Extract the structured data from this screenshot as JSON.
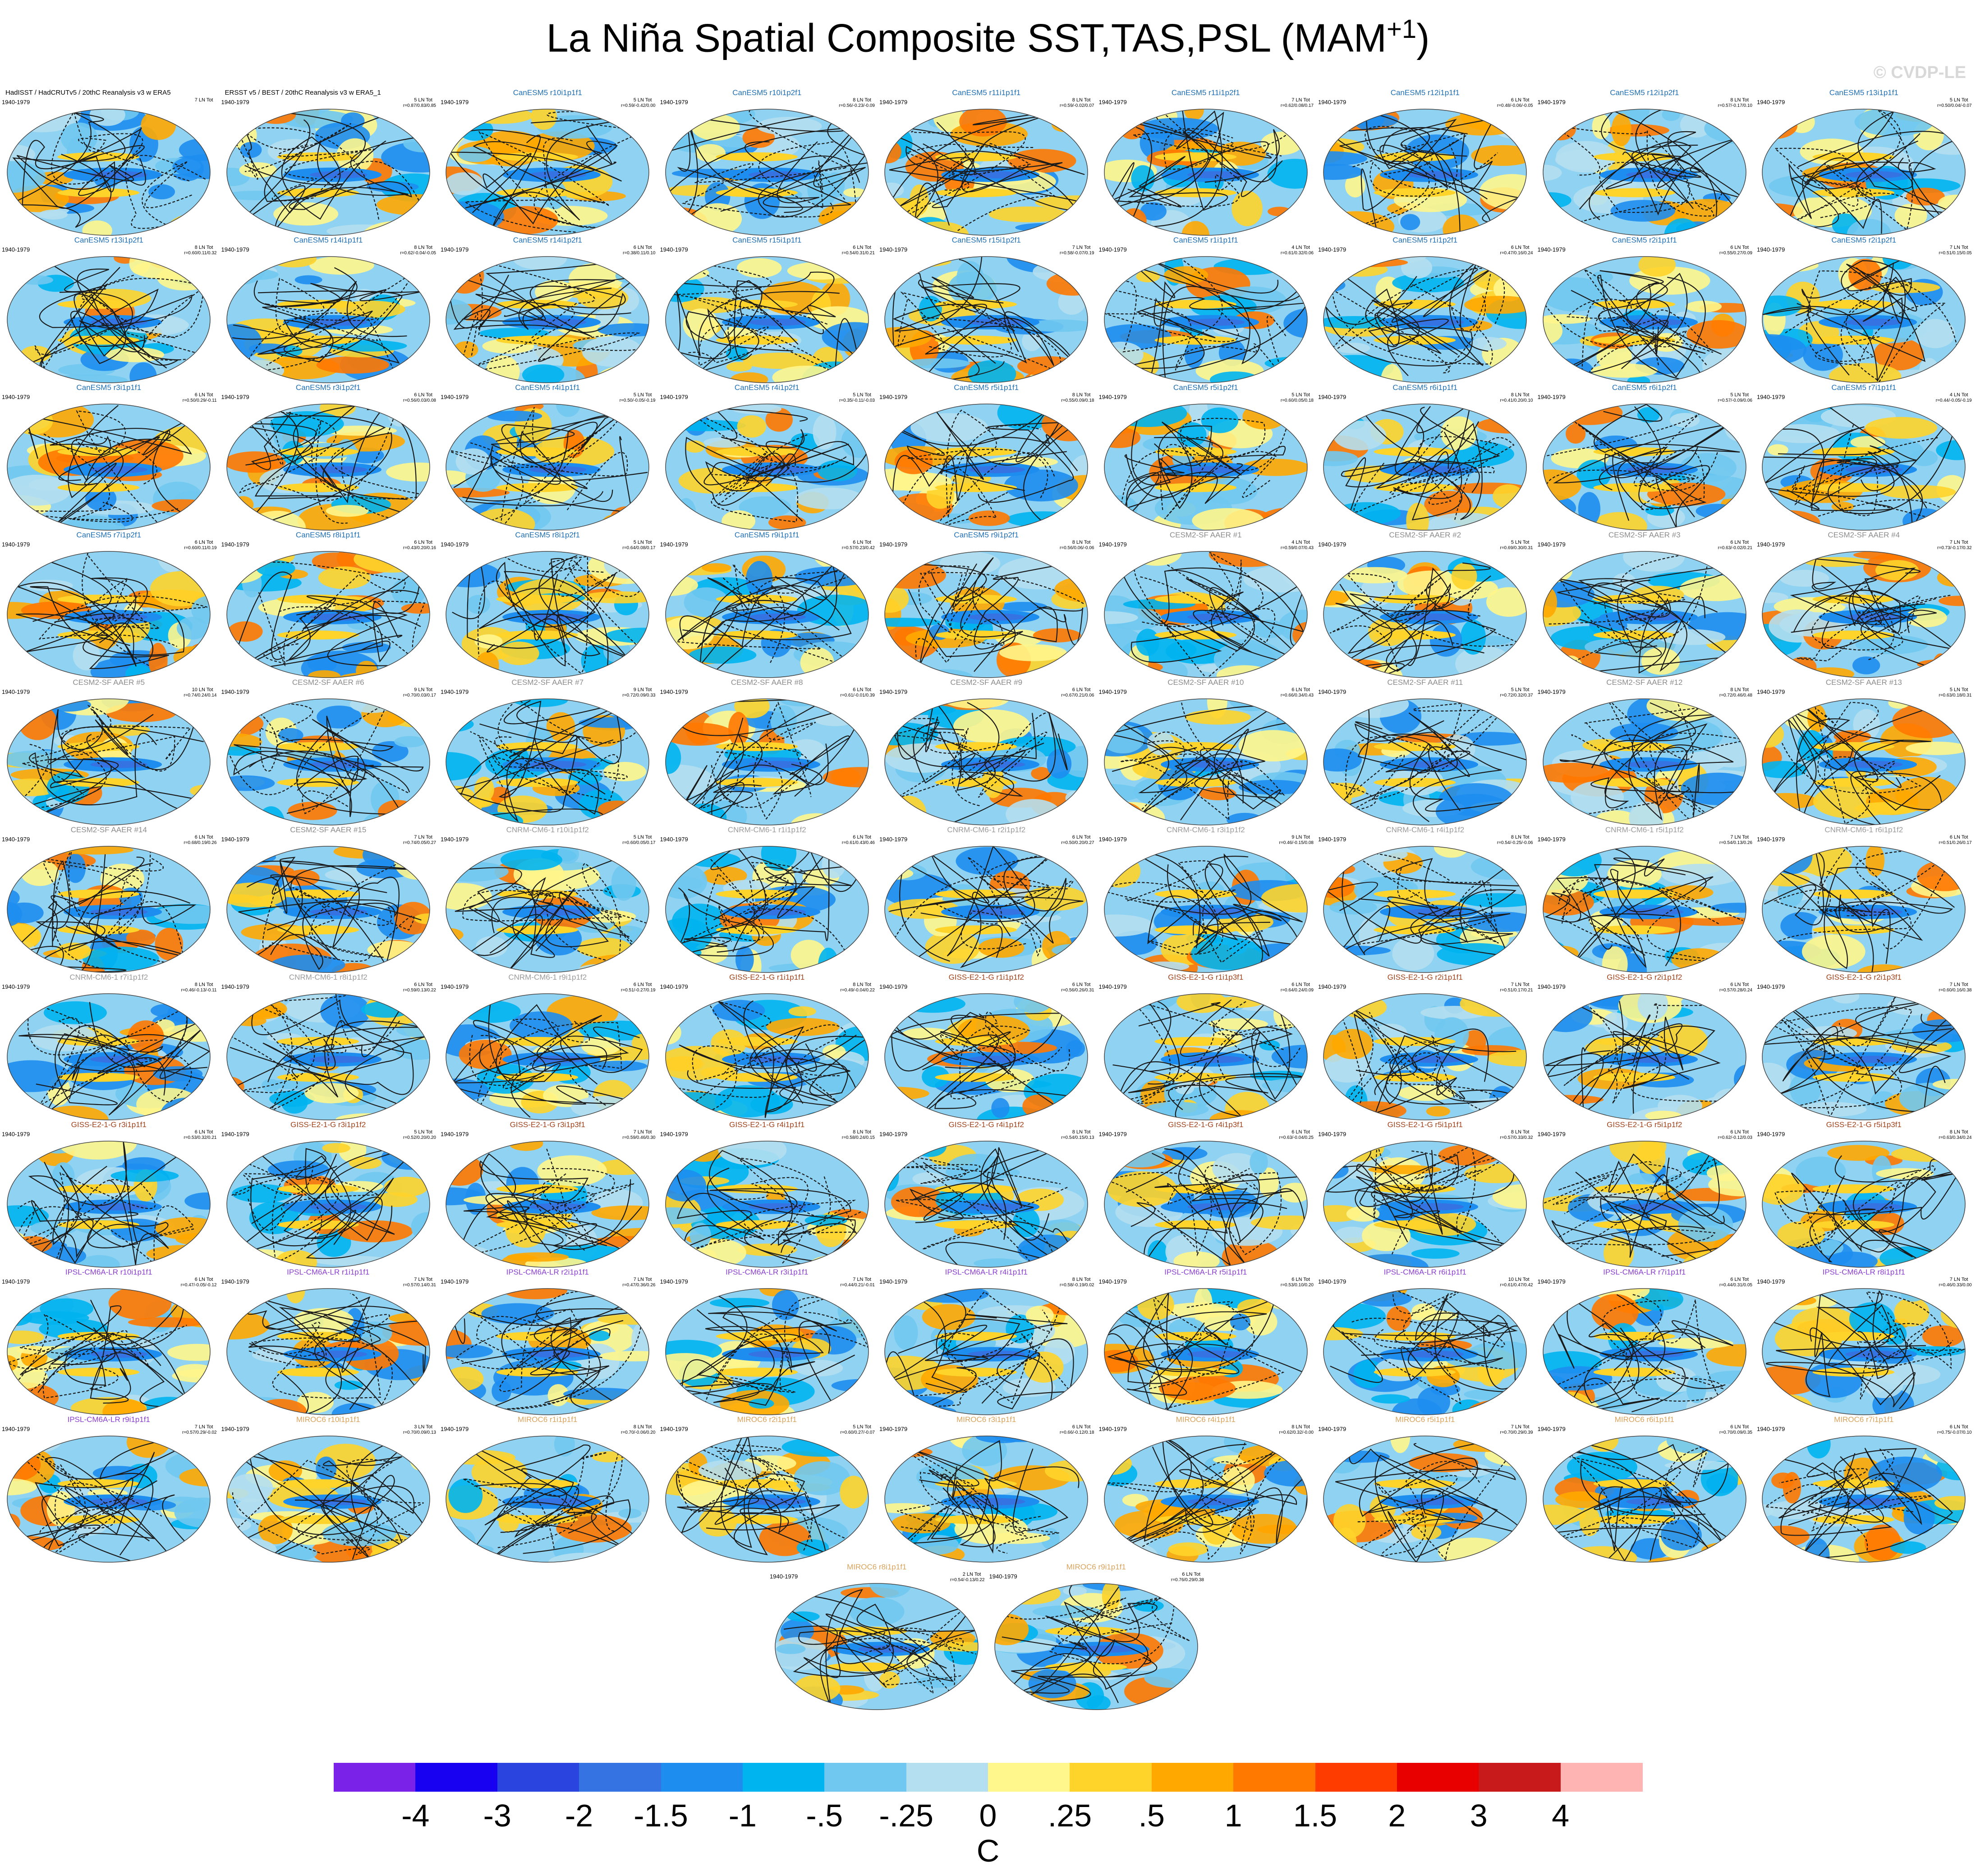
{
  "title": {
    "main": "La Niña Spatial Composite SST,TAS,PSL (MAM",
    "sup": "+1",
    "close": ")"
  },
  "credit": "© CVDP-LE",
  "period": "1940-1979",
  "panels": [
    {
      "name": "HadISST / HadCRUTv5 / 20thC Reanalysis v3 w ERA5",
      "count": "7 LN Tot",
      "stats": "",
      "color": "#000000",
      "left": true
    },
    {
      "name": "ERSST v5 / BEST / 20thC Reanalysis v3 w ERA5_1",
      "count": "5 LN Tot",
      "stats": "r=0.87/0.83/0.85",
      "color": "#000000",
      "left": true
    },
    {
      "name": "CanESM5 r10i1p1f1",
      "count": "5 LN Tot",
      "stats": "r=0.59/-0.42/0.00",
      "color": "#1f6fb4"
    },
    {
      "name": "CanESM5 r10i1p2f1",
      "count": "8 LN Tot",
      "stats": "r=0.56/-0.23/-0.09",
      "color": "#1f6fb4"
    },
    {
      "name": "CanESM5 r11i1p1f1",
      "count": "8 LN Tot",
      "stats": "r=0.59/-0.02/0.07",
      "color": "#1f6fb4"
    },
    {
      "name": "CanESM5 r11i1p2f1",
      "count": "7 LN Tot",
      "stats": "r=0.62/0.08/0.17",
      "color": "#1f6fb4"
    },
    {
      "name": "CanESM5 r12i1p1f1",
      "count": "6 LN Tot",
      "stats": "r=0.48/-0.06/-0.05",
      "color": "#1f6fb4"
    },
    {
      "name": "CanESM5 r12i1p2f1",
      "count": "8 LN Tot",
      "stats": "r=0.57/-0.17/0.10",
      "color": "#1f6fb4"
    },
    {
      "name": "CanESM5 r13i1p1f1",
      "count": "5 LN Tot",
      "stats": "r=0.50/0.04/-0.07",
      "color": "#1f6fb4"
    },
    {
      "name": "CanESM5 r13i1p2f1",
      "count": "8 LN Tot",
      "stats": "r=0.60/0.11/0.32",
      "color": "#1f6fb4"
    },
    {
      "name": "CanESM5 r14i1p1f1",
      "count": "8 LN Tot",
      "stats": "r=0.62/-0.04/-0.05",
      "color": "#1f6fb4"
    },
    {
      "name": "CanESM5 r14i1p2f1",
      "count": "6 LN Tot",
      "stats": "r=0.38/0.11/0.10",
      "color": "#1f6fb4"
    },
    {
      "name": "CanESM5 r15i1p1f1",
      "count": "6 LN Tot",
      "stats": "r=0.54/0.31/0.21",
      "color": "#1f6fb4"
    },
    {
      "name": "CanESM5 r15i1p2f1",
      "count": "7 LN Tot",
      "stats": "r=0.58/-0.07/0.19",
      "color": "#1f6fb4"
    },
    {
      "name": "CanESM5 r1i1p1f1",
      "count": "4 LN Tot",
      "stats": "r=0.61/0.32/0.06",
      "color": "#1f6fb4"
    },
    {
      "name": "CanESM5 r1i1p2f1",
      "count": "6 LN Tot",
      "stats": "r=0.47/0.16/0.24",
      "color": "#1f6fb4"
    },
    {
      "name": "CanESM5 r2i1p1f1",
      "count": "6 LN Tot",
      "stats": "r=0.55/0.27/0.09",
      "color": "#1f6fb4"
    },
    {
      "name": "CanESM5 r2i1p2f1",
      "count": "7 LN Tot",
      "stats": "r=0.51/0.15/0.05",
      "color": "#1f6fb4"
    },
    {
      "name": "CanESM5 r3i1p1f1",
      "count": "6 LN Tot",
      "stats": "r=0.50/0.29/-0.11",
      "color": "#1f6fb4"
    },
    {
      "name": "CanESM5 r3i1p2f1",
      "count": "6 LN Tot",
      "stats": "r=0.56/0.03/0.08",
      "color": "#1f6fb4"
    },
    {
      "name": "CanESM5 r4i1p1f1",
      "count": "5 LN Tot",
      "stats": "r=0.50/-0.05/-0.19",
      "color": "#1f6fb4"
    },
    {
      "name": "CanESM5 r4i1p2f1",
      "count": "5 LN Tot",
      "stats": "r=0.35/-0.11/-0.03",
      "color": "#1f6fb4"
    },
    {
      "name": "CanESM5 r5i1p1f1",
      "count": "8 LN Tot",
      "stats": "r=0.55/0.09/0.18",
      "color": "#1f6fb4"
    },
    {
      "name": "CanESM5 r5i1p2f1",
      "count": "5 LN Tot",
      "stats": "r=0.60/0.05/0.18",
      "color": "#1f6fb4"
    },
    {
      "name": "CanESM5 r6i1p1f1",
      "count": "8 LN Tot",
      "stats": "r=0.41/0.20/0.10",
      "color": "#1f6fb4"
    },
    {
      "name": "CanESM5 r6i1p2f1",
      "count": "5 LN Tot",
      "stats": "r=0.57/-0.09/0.06",
      "color": "#1f6fb4"
    },
    {
      "name": "CanESM5 r7i1p1f1",
      "count": "4 LN Tot",
      "stats": "r=0.44/-0.05/-0.19",
      "color": "#1f6fb4"
    },
    {
      "name": "CanESM5 r7i1p2f1",
      "count": "6 LN Tot",
      "stats": "r=0.60/0.11/0.19",
      "color": "#1f6fb4"
    },
    {
      "name": "CanESM5 r8i1p1f1",
      "count": "6 LN Tot",
      "stats": "r=0.43/0.20/0.16",
      "color": "#1f6fb4"
    },
    {
      "name": "CanESM5 r8i1p2f1",
      "count": "5 LN Tot",
      "stats": "r=0.64/0.08/0.17",
      "color": "#1f6fb4"
    },
    {
      "name": "CanESM5 r9i1p1f1",
      "count": "6 LN Tot",
      "stats": "r=0.57/0.23/0.42",
      "color": "#1f6fb4"
    },
    {
      "name": "CanESM5 r9i1p2f1",
      "count": "8 LN Tot",
      "stats": "r=0.56/0.06/-0.06",
      "color": "#1f6fb4"
    },
    {
      "name": "CESM2-SF AAER #1",
      "count": "4 LN Tot",
      "stats": "r=0.59/0.07/0.43",
      "color": "#8c8c8c"
    },
    {
      "name": "CESM2-SF AAER #2",
      "count": "5 LN Tot",
      "stats": "r=0.69/0.30/0.31",
      "color": "#8c8c8c"
    },
    {
      "name": "CESM2-SF AAER #3",
      "count": "6 LN Tot",
      "stats": "r=0.63/-0.02/0.21",
      "color": "#8c8c8c"
    },
    {
      "name": "CESM2-SF AAER #4",
      "count": "7 LN Tot",
      "stats": "r=0.73/-0.17/0.32",
      "color": "#8c8c8c"
    },
    {
      "name": "CESM2-SF AAER #5",
      "count": "10 LN Tot",
      "stats": "r=0.74/0.24/0.14",
      "color": "#8c8c8c"
    },
    {
      "name": "CESM2-SF AAER #6",
      "count": "9 LN Tot",
      "stats": "r=0.70/0.03/0.17",
      "color": "#8c8c8c"
    },
    {
      "name": "CESM2-SF AAER #7",
      "count": "9 LN Tot",
      "stats": "r=0.72/0.09/0.33",
      "color": "#8c8c8c"
    },
    {
      "name": "CESM2-SF AAER #8",
      "count": "6 LN Tot",
      "stats": "r=0.61/-0.01/0.39",
      "color": "#8c8c8c"
    },
    {
      "name": "CESM2-SF AAER #9",
      "count": "6 LN Tot",
      "stats": "r=0.67/0.21/0.06",
      "color": "#8c8c8c"
    },
    {
      "name": "CESM2-SF AAER #10",
      "count": "6 LN Tot",
      "stats": "r=0.66/0.34/0.43",
      "color": "#8c8c8c"
    },
    {
      "name": "CESM2-SF AAER #11",
      "count": "5 LN Tot",
      "stats": "r=0.72/0.32/0.37",
      "color": "#8c8c8c"
    },
    {
      "name": "CESM2-SF AAER #12",
      "count": "8 LN Tot",
      "stats": "r=0.72/0.46/0.48",
      "color": "#8c8c8c"
    },
    {
      "name": "CESM2-SF AAER #13",
      "count": "5 LN Tot",
      "stats": "r=0.63/0.18/0.31",
      "color": "#8c8c8c"
    },
    {
      "name": "CESM2-SF AAER #14",
      "count": "6 LN Tot",
      "stats": "r=0.68/0.19/0.26",
      "color": "#8c8c8c"
    },
    {
      "name": "CESM2-SF AAER #15",
      "count": "7 LN Tot",
      "stats": "r=0.74/0.05/0.27",
      "color": "#8c8c8c"
    },
    {
      "name": "CNRM-CM6-1 r10i1p1f2",
      "count": "5 LN Tot",
      "stats": "r=0.60/0.05/0.17",
      "color": "#9b9b9b"
    },
    {
      "name": "CNRM-CM6-1 r1i1p1f2",
      "count": "6 LN Tot",
      "stats": "r=0.61/0.43/0.46",
      "color": "#9b9b9b"
    },
    {
      "name": "CNRM-CM6-1 r2i1p1f2",
      "count": "6 LN Tot",
      "stats": "r=0.50/0.20/0.27",
      "color": "#9b9b9b"
    },
    {
      "name": "CNRM-CM6-1 r3i1p1f2",
      "count": "9 LN Tot",
      "stats": "r=0.46/-0.15/0.08",
      "color": "#9b9b9b"
    },
    {
      "name": "CNRM-CM6-1 r4i1p1f2",
      "count": "8 LN Tot",
      "stats": "r=0.54/-0.25/-0.06",
      "color": "#9b9b9b"
    },
    {
      "name": "CNRM-CM6-1 r5i1p1f2",
      "count": "7 LN Tot",
      "stats": "r=0.54/0.13/0.26",
      "color": "#9b9b9b"
    },
    {
      "name": "CNRM-CM6-1 r6i1p1f2",
      "count": "6 LN Tot",
      "stats": "r=0.51/0.26/0.17",
      "color": "#9b9b9b"
    },
    {
      "name": "CNRM-CM6-1 r7i1p1f2",
      "count": "8 LN Tot",
      "stats": "r=0.46/-0.13/-0.11",
      "color": "#9b9b9b"
    },
    {
      "name": "CNRM-CM6-1 r8i1p1f2",
      "count": "6 LN Tot",
      "stats": "r=0.59/0.13/0.22",
      "color": "#9b9b9b"
    },
    {
      "name": "CNRM-CM6-1 r9i1p1f2",
      "count": "6 LN Tot",
      "stats": "r=0.51/-0.27/0.19",
      "color": "#9b9b9b"
    },
    {
      "name": "GISS-E2-1-G r1i1p1f1",
      "count": "8 LN Tot",
      "stats": "r=0.49/-0.04/0.22",
      "color": "#a0431c"
    },
    {
      "name": "GISS-E2-1-G r1i1p1f2",
      "count": "6 LN Tot",
      "stats": "r=0.56/0.26/0.31",
      "color": "#a0431c"
    },
    {
      "name": "GISS-E2-1-G r1i1p3f1",
      "count": "6 LN Tot",
      "stats": "r=0.64/0.24/0.09",
      "color": "#a0431c"
    },
    {
      "name": "GISS-E2-1-G r2i1p1f1",
      "count": "7 LN Tot",
      "stats": "r=0.51/0.17/0.21",
      "color": "#a0431c"
    },
    {
      "name": "GISS-E2-1-G r2i1p1f2",
      "count": "6 LN Tot",
      "stats": "r=0.57/0.28/0.24",
      "color": "#a0431c"
    },
    {
      "name": "GISS-E2-1-G r2i1p3f1",
      "count": "7 LN Tot",
      "stats": "r=0.60/0.16/0.38",
      "color": "#a0431c"
    },
    {
      "name": "GISS-E2-1-G r3i1p1f1",
      "count": "6 LN Tot",
      "stats": "r=0.53/0.32/0.21",
      "color": "#a0431c"
    },
    {
      "name": "GISS-E2-1-G r3i1p1f2",
      "count": "5 LN Tot",
      "stats": "r=0.52/0.20/0.20",
      "color": "#a0431c"
    },
    {
      "name": "GISS-E2-1-G r3i1p3f1",
      "count": "7 LN Tot",
      "stats": "r=0.59/0.46/0.30",
      "color": "#a0431c"
    },
    {
      "name": "GISS-E2-1-G r4i1p1f1",
      "count": "8 LN Tot",
      "stats": "r=0.58/0.24/0.15",
      "color": "#a0431c"
    },
    {
      "name": "GISS-E2-1-G r4i1p1f2",
      "count": "8 LN Tot",
      "stats": "r=0.54/0.15/0.13",
      "color": "#a0431c"
    },
    {
      "name": "GISS-E2-1-G r4i1p3f1",
      "count": "6 LN Tot",
      "stats": "r=0.63/-0.04/0.25",
      "color": "#a0431c"
    },
    {
      "name": "GISS-E2-1-G r5i1p1f1",
      "count": "8 LN Tot",
      "stats": "r=0.57/0.33/0.32",
      "color": "#a0431c"
    },
    {
      "name": "GISS-E2-1-G r5i1p1f2",
      "count": "6 LN Tot",
      "stats": "r=0.62/-0.12/0.03",
      "color": "#a0431c"
    },
    {
      "name": "GISS-E2-1-G r5i1p3f1",
      "count": "8 LN Tot",
      "stats": "r=0.63/0.34/0.24",
      "color": "#a0431c"
    },
    {
      "name": "IPSL-CM6A-LR r10i1p1f1",
      "count": "6 LN Tot",
      "stats": "r=0.47/-0.05/-0.12",
      "color": "#8a3fd1"
    },
    {
      "name": "IPSL-CM6A-LR r1i1p1f1",
      "count": "7 LN Tot",
      "stats": "r=0.57/0.14/0.31",
      "color": "#8a3fd1"
    },
    {
      "name": "IPSL-CM6A-LR r2i1p1f1",
      "count": "7 LN Tot",
      "stats": "r=0.47/0.36/0.26",
      "color": "#8a3fd1"
    },
    {
      "name": "IPSL-CM6A-LR r3i1p1f1",
      "count": "7 LN Tot",
      "stats": "r=0.44/0.21/-0.01",
      "color": "#8a3fd1"
    },
    {
      "name": "IPSL-CM6A-LR r4i1p1f1",
      "count": "8 LN Tot",
      "stats": "r=0.58/-0.19/0.02",
      "color": "#8a3fd1"
    },
    {
      "name": "IPSL-CM6A-LR r5i1p1f1",
      "count": "6 LN Tot",
      "stats": "r=0.53/0.10/0.20",
      "color": "#8a3fd1"
    },
    {
      "name": "IPSL-CM6A-LR r6i1p1f1",
      "count": "10 LN Tot",
      "stats": "r=0.61/0.47/0.42",
      "color": "#8a3fd1"
    },
    {
      "name": "IPSL-CM6A-LR r7i1p1f1",
      "count": "6 LN Tot",
      "stats": "r=0.44/0.31/0.05",
      "color": "#8a3fd1"
    },
    {
      "name": "IPSL-CM6A-LR r8i1p1f1",
      "count": "7 LN Tot",
      "stats": "r=0.46/0.33/0.00",
      "color": "#8a3fd1"
    },
    {
      "name": "IPSL-CM6A-LR r9i1p1f1",
      "count": "7 LN Tot",
      "stats": "r=0.57/0.29/-0.02",
      "color": "#8a3fd1"
    },
    {
      "name": "MIROC6 r10i1p1f1",
      "count": "3 LN Tot",
      "stats": "r=0.70/0.09/0.13",
      "color": "#d9a35b"
    },
    {
      "name": "MIROC6 r1i1p1f1",
      "count": "8 LN Tot",
      "stats": "r=0.70/-0.06/0.20",
      "color": "#d9a35b"
    },
    {
      "name": "MIROC6 r2i1p1f1",
      "count": "5 LN Tot",
      "stats": "r=0.60/0.27/-0.07",
      "color": "#d9a35b"
    },
    {
      "name": "MIROC6 r3i1p1f1",
      "count": "6 LN Tot",
      "stats": "r=0.66/-0.12/0.18",
      "color": "#d9a35b"
    },
    {
      "name": "MIROC6 r4i1p1f1",
      "count": "8 LN Tot",
      "stats": "r=0.62/0.32/-0.00",
      "color": "#d9a35b"
    },
    {
      "name": "MIROC6 r5i1p1f1",
      "count": "7 LN Tot",
      "stats": "r=0.70/0.29/0.39",
      "color": "#d9a35b"
    },
    {
      "name": "MIROC6 r6i1p1f1",
      "count": "6 LN Tot",
      "stats": "r=0.70/0.09/0.35",
      "color": "#d9a35b"
    },
    {
      "name": "MIROC6 r7i1p1f1",
      "count": "6 LN Tot",
      "stats": "r=0.75/-0.07/0.10",
      "color": "#d9a35b"
    },
    {
      "name": "MIROC6 r8i1p1f1",
      "count": "2 LN Tot",
      "stats": "r=0.54/-0.13/0.22",
      "color": "#d9a35b"
    },
    {
      "name": "MIROC6 r9i1p1f1",
      "count": "6 LN Tot",
      "stats": "r=0.76/0.29/0.38",
      "color": "#d9a35b"
    }
  ],
  "colorbar": {
    "colors": [
      "#7b22e8",
      "#1800f0",
      "#2a44e0",
      "#3572e2",
      "#1d8df0",
      "#00b4f0",
      "#70c8f0",
      "#b4dff0",
      "#fff68c",
      "#ffd42a",
      "#ffa800",
      "#ff7800",
      "#ff3c00",
      "#e80000",
      "#c81a1a",
      "#ffb4b4"
    ],
    "labels": [
      "-4",
      "-3",
      "-2",
      "-1.5",
      "-1",
      "-.5",
      "-.25",
      "0",
      ".25",
      ".5",
      "1",
      "1.5",
      "2",
      "3",
      "4"
    ],
    "unit": "C"
  }
}
